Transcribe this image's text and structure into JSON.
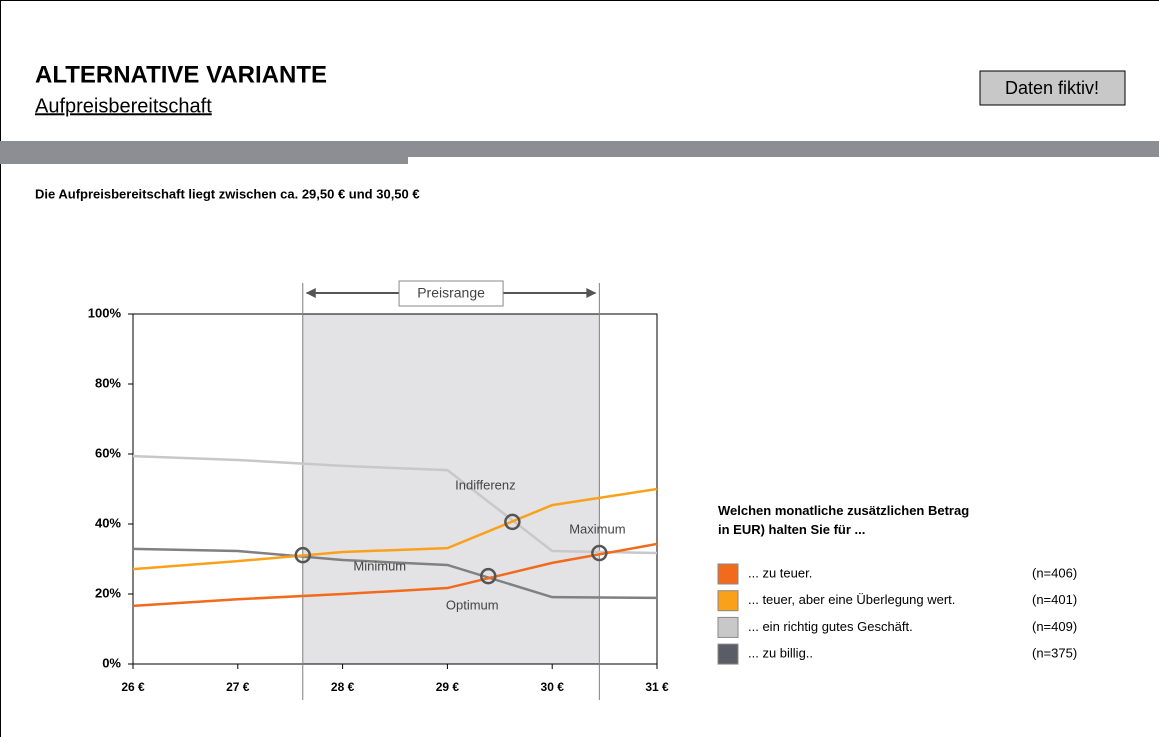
{
  "header": {
    "title": "ALTERNATIVE VARIANTE",
    "subtitle": "Aufpreisbereitschaft",
    "badge": "Daten fiktiv!"
  },
  "headline": "Die Aufpreisbereitschaft liegt zwischen ca. 29,50 € und 30,50 €",
  "chart_data": {
    "type": "line",
    "x": [
      26,
      27,
      28,
      29,
      30,
      31
    ],
    "series": [
      {
        "name": "... zu teuer.",
        "n_label": "(n=406)",
        "color": "#f26a1b",
        "values": [
          16.6,
          18.5,
          20,
          21.7,
          28.9,
          34.3
        ]
      },
      {
        "name": "... teuer, aber eine Überlegung wert.",
        "n_label": "(n=401)",
        "color": "#f9a11b",
        "values": [
          27.1,
          29.4,
          32,
          33.1,
          45.4,
          50
        ]
      },
      {
        "name": "... ein richtig gutes Geschäft.",
        "n_label": "(n=409)",
        "color": "#c8c8c8",
        "values": [
          59.4,
          58.3,
          56.6,
          55.4,
          32.3,
          31.7
        ]
      },
      {
        "name": "... zu billig..",
        "n_label": "(n=375)",
        "color": "#808080",
        "values": [
          32.9,
          32.3,
          29.7,
          28.3,
          19.1,
          18.9
        ]
      }
    ],
    "legend_title": "Welchen monatliche zusätzlichen Betrag in EUR) halten Sie für ...",
    "annotations": [
      {
        "label": "Minimum",
        "x": 27.62,
        "y": 31.1
      },
      {
        "label": "Indifferenz",
        "x": 29.62,
        "y": 40.6
      },
      {
        "label": "Optimum",
        "x": 29.39,
        "y": 25.1
      },
      {
        "label": "Maximum",
        "x": 30.45,
        "y": 31.7
      }
    ],
    "range": {
      "label": "Preisrange",
      "from": 27.62,
      "to": 30.45
    },
    "xlim": [
      26,
      31
    ],
    "xticks": [
      {
        "value": 26,
        "label": "26 €"
      },
      {
        "value": 27,
        "label": "27 €"
      },
      {
        "value": 28,
        "label": "28 €"
      },
      {
        "value": 29,
        "label": "29 €"
      },
      {
        "value": 30,
        "label": "30 €"
      },
      {
        "value": 31,
        "label": "31 €"
      }
    ],
    "ylim": [
      0,
      100
    ],
    "yticks": [
      {
        "value": 0,
        "label": "0%"
      },
      {
        "value": 20,
        "label": "20%"
      },
      {
        "value": 40,
        "label": "40%"
      },
      {
        "value": 60,
        "label": "60%"
      },
      {
        "value": 80,
        "label": "80%"
      },
      {
        "value": 100,
        "label": "100%"
      }
    ]
  }
}
